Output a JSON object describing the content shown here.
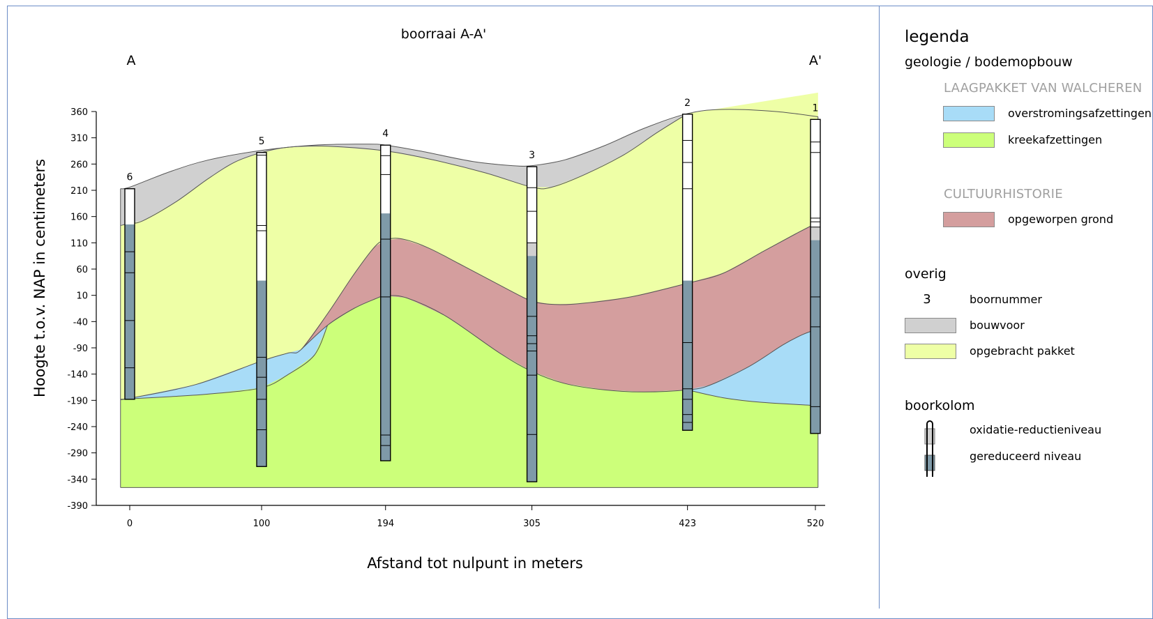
{
  "chart_data": {
    "type": "cross-section",
    "title": "boorraai A-A'",
    "left_end_label": "A",
    "right_end_label": "A'",
    "xlabel": "Afstand tot nulpunt in meters",
    "ylabel": "Hoogte t.o.v. NAP in centimeters",
    "x_ticks": [
      0,
      100,
      194,
      305,
      423,
      520
    ],
    "y_ticks": [
      360,
      310,
      260,
      210,
      160,
      110,
      60,
      10,
      -40,
      -90,
      -140,
      -190,
      -240,
      -290,
      -340,
      -390
    ],
    "ylim": [
      -390,
      360
    ],
    "boreholes": [
      {
        "number": "6",
        "x": 0,
        "top": 213,
        "bottom": -188,
        "reduced_from": 145,
        "marks": [
          93,
          53,
          -38,
          -128
        ]
      },
      {
        "number": "5",
        "x": 100,
        "top": 282,
        "bottom": -316,
        "reduced_from": 38,
        "marks": [
          277,
          143,
          133,
          -108,
          -146,
          -188,
          -246
        ]
      },
      {
        "number": "4",
        "x": 194,
        "top": 296,
        "bottom": -305,
        "reduced_from": 166,
        "marks": [
          276,
          240,
          117,
          7,
          -256,
          -276
        ]
      },
      {
        "number": "3",
        "x": 305,
        "top": 255,
        "bottom": -345,
        "reduced_from": 85,
        "oxidation_from": 110,
        "marks": [
          215,
          170,
          110,
          -30,
          -67,
          -82,
          -96,
          -142,
          -255
        ]
      },
      {
        "number": "2",
        "x": 423,
        "top": 355,
        "bottom": -247,
        "reduced_from": 38,
        "marks": [
          305,
          263,
          213,
          -80,
          -168,
          -188,
          -217,
          -232
        ]
      },
      {
        "number": "1",
        "x": 520,
        "top": 345,
        "bottom": -253,
        "reduced_from": 115,
        "oxidation_from": 140,
        "marks": [
          302,
          282,
          157,
          150,
          140,
          7,
          -50,
          -202
        ]
      }
    ],
    "layers": [
      {
        "name": "kreekafzettingen",
        "color": "#ccff7a"
      },
      {
        "name": "overstromingsafzettingen",
        "color": "#a8dcf7"
      },
      {
        "name": "opgeworpen grond",
        "color": "#d49e9e"
      },
      {
        "name": "opgebracht pakket",
        "color": "#eeffa6"
      },
      {
        "name": "bouwvoor",
        "color": "#d0d0d0"
      }
    ]
  },
  "legend": {
    "title": "legenda",
    "geology_heading": "geologie / bodemopbouw",
    "group1_title": "LAAGPAKKET VAN WALCHEREN",
    "group1_items": [
      {
        "label": "overstromingsafzettingen",
        "color": "#a8dcf7"
      },
      {
        "label": "kreekafzettingen",
        "color": "#ccff7a"
      }
    ],
    "group2_title": "CULTUURHISTORIE",
    "group2_items": [
      {
        "label": "opgeworpen grond",
        "color": "#d49e9e"
      }
    ],
    "misc_heading": "overig",
    "misc_number_example": "3",
    "misc_number_label": "boornummer",
    "misc_items": [
      {
        "label": "bouwvoor",
        "color": "#d0d0d0"
      },
      {
        "label": "opgebracht pakket",
        "color": "#eeffa6"
      }
    ],
    "column_heading": "boorkolom",
    "column_items": [
      {
        "label": "oxidatie-reductieniveau",
        "color": "#d0d0d0"
      },
      {
        "label": "gereduceerd niveau",
        "color": "#7f9aa8"
      }
    ]
  }
}
